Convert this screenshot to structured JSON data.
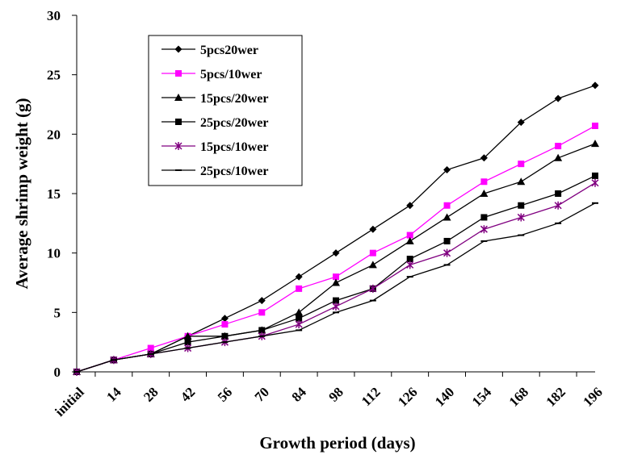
{
  "chart_data": {
    "type": "line",
    "title": "",
    "xlabel": "Growth period (days)",
    "ylabel": "Average shrimp weight (g)",
    "ylim": [
      0,
      30
    ],
    "yticks": [
      0,
      5,
      10,
      15,
      20,
      25,
      30
    ],
    "grid": false,
    "legend_position": "top-left-inside",
    "categories": [
      "initial",
      "14",
      "28",
      "42",
      "56",
      "70",
      "84",
      "98",
      "112",
      "126",
      "140",
      "154",
      "168",
      "182",
      "196"
    ],
    "series": [
      {
        "name": "5pcs20wer",
        "color": "#000000",
        "marker": "diamond",
        "values": [
          0,
          1,
          1.5,
          3,
          4.5,
          6,
          8,
          10,
          12,
          14,
          17,
          18,
          21,
          23,
          24.1
        ]
      },
      {
        "name": "5pcs/10wer",
        "color": "#ff00ff",
        "marker": "square",
        "values": [
          0,
          1,
          2,
          3,
          4,
          5,
          7,
          8,
          10,
          11.5,
          14,
          16,
          17.5,
          19,
          20.7
        ]
      },
      {
        "name": "15pcs/20wer",
        "color": "#000000",
        "marker": "triangle",
        "values": [
          0,
          1,
          1.5,
          3,
          3,
          3.5,
          5,
          7.5,
          9,
          11,
          13,
          15,
          16,
          18,
          19.2
        ]
      },
      {
        "name": "25pcs/20wer",
        "color": "#000000",
        "marker": "square",
        "values": [
          0,
          1,
          1.5,
          2.5,
          3,
          3.5,
          4.5,
          6,
          7,
          9.5,
          11,
          13,
          14,
          15,
          16.5
        ]
      },
      {
        "name": "15pcs/10wer",
        "color": "#800080",
        "marker": "star",
        "values": [
          0,
          1,
          1.5,
          2,
          2.5,
          3,
          4,
          5.5,
          7,
          9,
          10,
          12,
          13,
          14,
          15.9
        ]
      },
      {
        "name": "25pcs/10wer",
        "color": "#000000",
        "marker": "dash",
        "values": [
          0,
          1,
          1.5,
          2,
          2.5,
          3,
          3.5,
          5,
          6,
          8,
          9,
          11,
          11.5,
          12.5,
          14.2
        ]
      }
    ]
  }
}
